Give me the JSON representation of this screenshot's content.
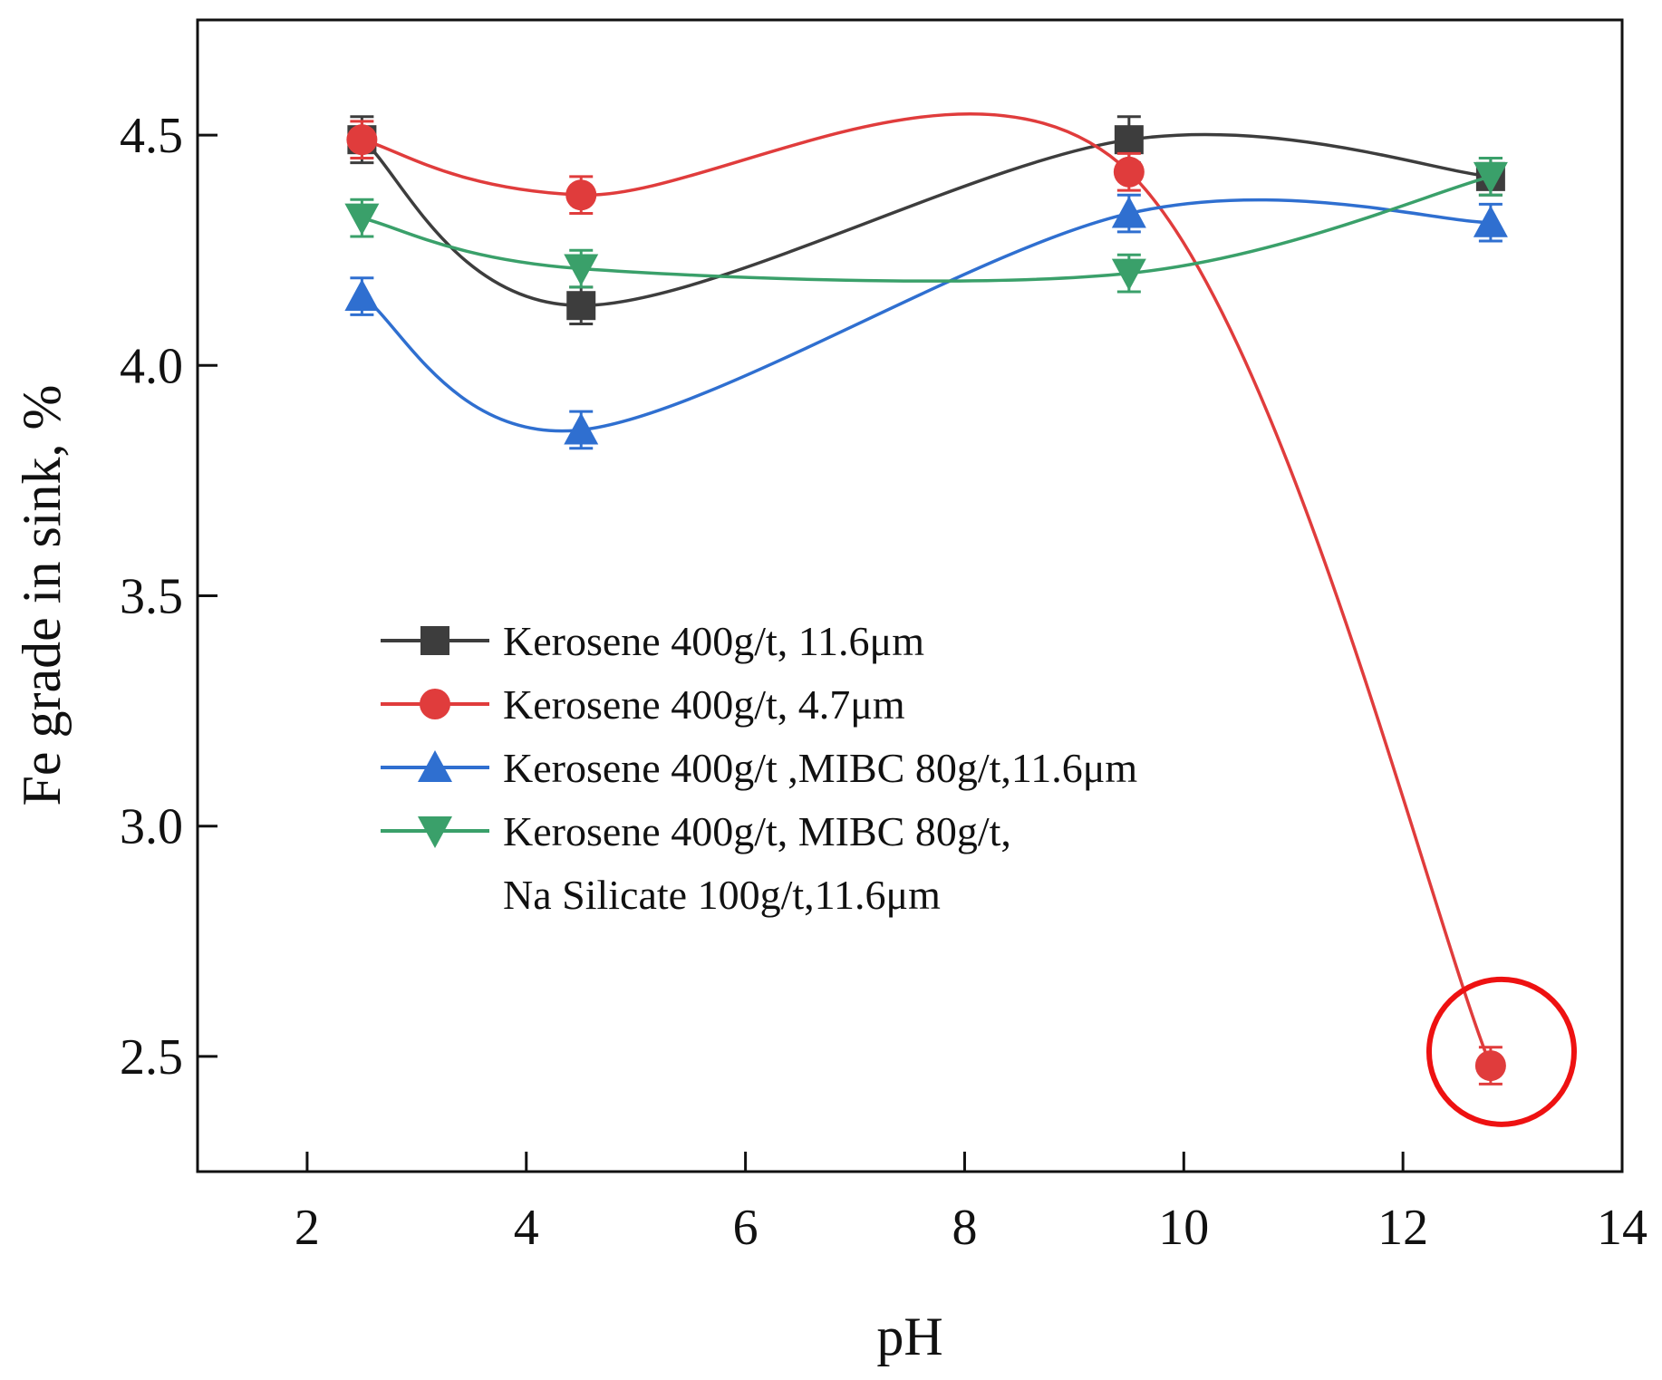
{
  "chart_data": {
    "type": "line",
    "title": "",
    "xlabel": "pH",
    "ylabel": "Fe grade in sink, %",
    "xlim": [
      1,
      14
    ],
    "ylim": [
      2.25,
      4.75
    ],
    "x_ticks": [
      2,
      4,
      6,
      8,
      10,
      12,
      14
    ],
    "y_ticks": [
      2.5,
      3.0,
      3.5,
      4.0,
      4.5
    ],
    "x_tick_labels": [
      "2",
      "4",
      "6",
      "8",
      "10",
      "12",
      "14"
    ],
    "y_tick_labels": [
      "2.5",
      "3.0",
      "3.5",
      "4.0",
      "4.5"
    ],
    "grid": false,
    "legend_position": "center-left",
    "smooth": true,
    "series": [
      {
        "name": "Kerosene 400g/t, 11.6μm",
        "marker": "square",
        "color": "#3d3d3d",
        "x": [
          2.5,
          4.5,
          9.5,
          12.8
        ],
        "values": [
          4.49,
          4.13,
          4.49,
          4.41
        ],
        "errors": [
          0.05,
          0.04,
          0.05,
          0.04
        ]
      },
      {
        "name": "Kerosene 400g/t, 4.7μm",
        "marker": "circle",
        "color": "#e03c3c",
        "x": [
          2.5,
          4.5,
          9.5,
          12.8
        ],
        "values": [
          4.49,
          4.37,
          4.42,
          2.48
        ],
        "errors": [
          0.04,
          0.04,
          0.04,
          0.04
        ]
      },
      {
        "name": "Kerosene 400g/t ,MIBC 80g/t,11.6μm",
        "marker": "triangle-up",
        "color": "#2f6fd0",
        "x": [
          2.5,
          4.5,
          9.5,
          12.8
        ],
        "values": [
          4.15,
          3.86,
          4.33,
          4.31
        ],
        "errors": [
          0.04,
          0.04,
          0.04,
          0.04
        ]
      },
      {
        "name": "Kerosene 400g/t, MIBC 80g/t,",
        "name_line2": "Na Silicate 100g/t,11.6μm",
        "marker": "triangle-down",
        "color": "#3aa06a",
        "x": [
          2.5,
          4.5,
          9.5,
          12.8
        ],
        "values": [
          4.32,
          4.21,
          4.2,
          4.41
        ],
        "errors": [
          0.04,
          0.04,
          0.04,
          0.04
        ]
      }
    ],
    "annotations": [
      {
        "type": "circle-highlight",
        "x": 12.9,
        "y": 2.51,
        "color": "#ee1111"
      }
    ]
  }
}
